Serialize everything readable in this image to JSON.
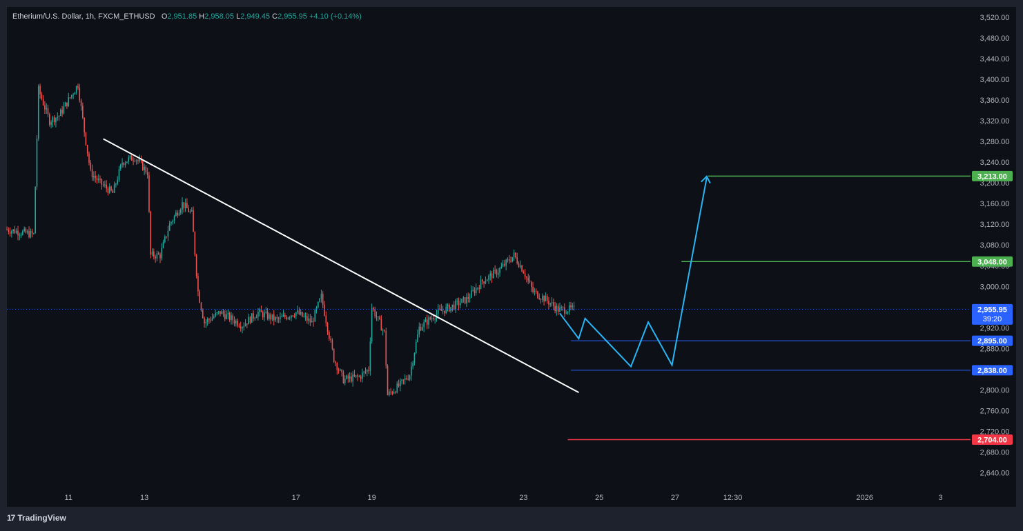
{
  "legend": {
    "symbol": "Etherium/U.S. Dollar, 1h, FXCM_ETHUSD",
    "o_label": "O",
    "o": "2,951.85",
    "h_label": "H",
    "h": "2,958.05",
    "l_label": "L",
    "l": "2,949.45",
    "c_label": "C",
    "c": "2,955.95",
    "change": "+4.10 (+0.14%)"
  },
  "brand": {
    "logo": "17",
    "name": "TradingView"
  },
  "colors": {
    "background": "#0d1017",
    "panel": "#1e222d",
    "up": "#26a69a",
    "down": "#ef5350",
    "trendline": "#ffffff",
    "projection": "#29b6f6",
    "target": "#4caf50",
    "support": "#2962ff",
    "stop": "#f23645",
    "axis_text": "#b2b5be"
  },
  "chart_data": {
    "type": "candlestick",
    "ylim": [
      2610,
      3540
    ],
    "x_range": [
      "2025-12-09 09:00",
      "2026-01-03 19:00"
    ],
    "y_ticks": [
      "3,520.00",
      "3,480.00",
      "3,440.00",
      "3,400.00",
      "3,360.00",
      "3,320.00",
      "3,280.00",
      "3,240.00",
      "3,200.00",
      "3,160.00",
      "3,120.00",
      "3,080.00",
      "3,040.00",
      "3,000.00",
      "2,960.00",
      "2,920.00",
      "2,880.00",
      "2,840.00",
      "2,800.00",
      "2,760.00",
      "2,720.00",
      "2,680.00",
      "2,640.00"
    ],
    "x_ticks": [
      {
        "label": "11",
        "time": "2025-12-11 00:00"
      },
      {
        "label": "13",
        "time": "2025-12-13 00:00"
      },
      {
        "label": "17",
        "time": "2025-12-17 00:00"
      },
      {
        "label": "19",
        "time": "2025-12-19 00:00"
      },
      {
        "label": "23",
        "time": "2025-12-23 00:00"
      },
      {
        "label": "25",
        "time": "2025-12-25 00:00"
      },
      {
        "label": "27",
        "time": "2025-12-27 00:00"
      },
      {
        "label": "12:30",
        "time": "2025-12-28 12:30"
      },
      {
        "label": "2026",
        "time": "2026-01-01 00:00"
      },
      {
        "label": "3",
        "time": "2026-01-03 00:00"
      }
    ],
    "price_path": [
      [
        "2025-12-09 09:00",
        3110
      ],
      [
        "2025-12-10 02:00",
        3100
      ],
      [
        "2025-12-10 05:00",
        3380
      ],
      [
        "2025-12-10 12:00",
        3320
      ],
      [
        "2025-12-10 18:00",
        3330
      ],
      [
        "2025-12-11 00:00",
        3360
      ],
      [
        "2025-12-11 06:00",
        3390
      ],
      [
        "2025-12-11 10:00",
        3300
      ],
      [
        "2025-12-11 14:00",
        3220
      ],
      [
        "2025-12-11 20:00",
        3200
      ],
      [
        "2025-12-12 04:00",
        3180
      ],
      [
        "2025-12-12 10:00",
        3240
      ],
      [
        "2025-12-12 18:00",
        3250
      ],
      [
        "2025-12-13 02:00",
        3220
      ],
      [
        "2025-12-13 04:00",
        3060
      ],
      [
        "2025-12-13 10:00",
        3060
      ],
      [
        "2025-12-13 16:00",
        3120
      ],
      [
        "2025-12-14 00:00",
        3160
      ],
      [
        "2025-12-14 06:00",
        3140
      ],
      [
        "2025-12-14 10:00",
        2990
      ],
      [
        "2025-12-14 14:00",
        2930
      ],
      [
        "2025-12-15 00:00",
        2950
      ],
      [
        "2025-12-15 14:00",
        2925
      ],
      [
        "2025-12-16 00:00",
        2950
      ],
      [
        "2025-12-16 12:00",
        2935
      ],
      [
        "2025-12-17 00:00",
        2950
      ],
      [
        "2025-12-17 10:00",
        2930
      ],
      [
        "2025-12-17 16:00",
        2980
      ],
      [
        "2025-12-18 00:00",
        2860
      ],
      [
        "2025-12-18 06:00",
        2820
      ],
      [
        "2025-12-18 16:00",
        2825
      ],
      [
        "2025-12-18 22:00",
        2840
      ],
      [
        "2025-12-19 00:00",
        2960
      ],
      [
        "2025-12-19 08:00",
        2910
      ],
      [
        "2025-12-19 10:00",
        2790
      ],
      [
        "2025-12-19 18:00",
        2810
      ],
      [
        "2025-12-20 00:00",
        2830
      ],
      [
        "2025-12-20 06:00",
        2920
      ],
      [
        "2025-12-20 18:00",
        2950
      ],
      [
        "2025-12-21 02:00",
        2960
      ],
      [
        "2025-12-21 12:00",
        2975
      ],
      [
        "2025-12-21 22:00",
        3010
      ],
      [
        "2025-12-22 08:00",
        3030
      ],
      [
        "2025-12-22 18:00",
        3060
      ],
      [
        "2025-12-23 00:00",
        3030
      ],
      [
        "2025-12-23 06:00",
        2990
      ],
      [
        "2025-12-23 14:00",
        2975
      ],
      [
        "2025-12-23 22:00",
        2955
      ],
      [
        "2025-12-24 08:00",
        2956
      ]
    ],
    "current_price": {
      "value": 2955.95,
      "label": "2,955.95",
      "countdown": "39:20"
    },
    "trendline": {
      "start": [
        "2025-12-11 22:00",
        3285
      ],
      "end": [
        "2025-12-24 11:00",
        2795
      ]
    },
    "projection_path": [
      [
        "2025-12-23 23:00",
        2948
      ],
      [
        "2025-12-24 11:00",
        2899
      ],
      [
        "2025-12-24 15:00",
        2938
      ],
      [
        "2025-12-25 20:00",
        2845
      ],
      [
        "2025-12-26 07:00",
        2931
      ],
      [
        "2025-12-26 22:00",
        2848
      ],
      [
        "2025-12-27 20:00",
        3210
      ]
    ],
    "levels": [
      {
        "value": 3213,
        "label": "3,213.00",
        "kind": "target",
        "from": "2025-12-27 21:00"
      },
      {
        "value": 3048,
        "label": "3,048.00",
        "kind": "target",
        "from": "2025-12-27 04:00"
      },
      {
        "value": 2895,
        "label": "2,895.00",
        "kind": "support",
        "from": "2025-12-24 06:00"
      },
      {
        "value": 2838,
        "label": "2,838.00",
        "kind": "support",
        "from": "2025-12-24 06:00"
      },
      {
        "value": 2704,
        "label": "2,704.00",
        "kind": "stop",
        "from": "2025-12-24 04:00"
      }
    ]
  }
}
